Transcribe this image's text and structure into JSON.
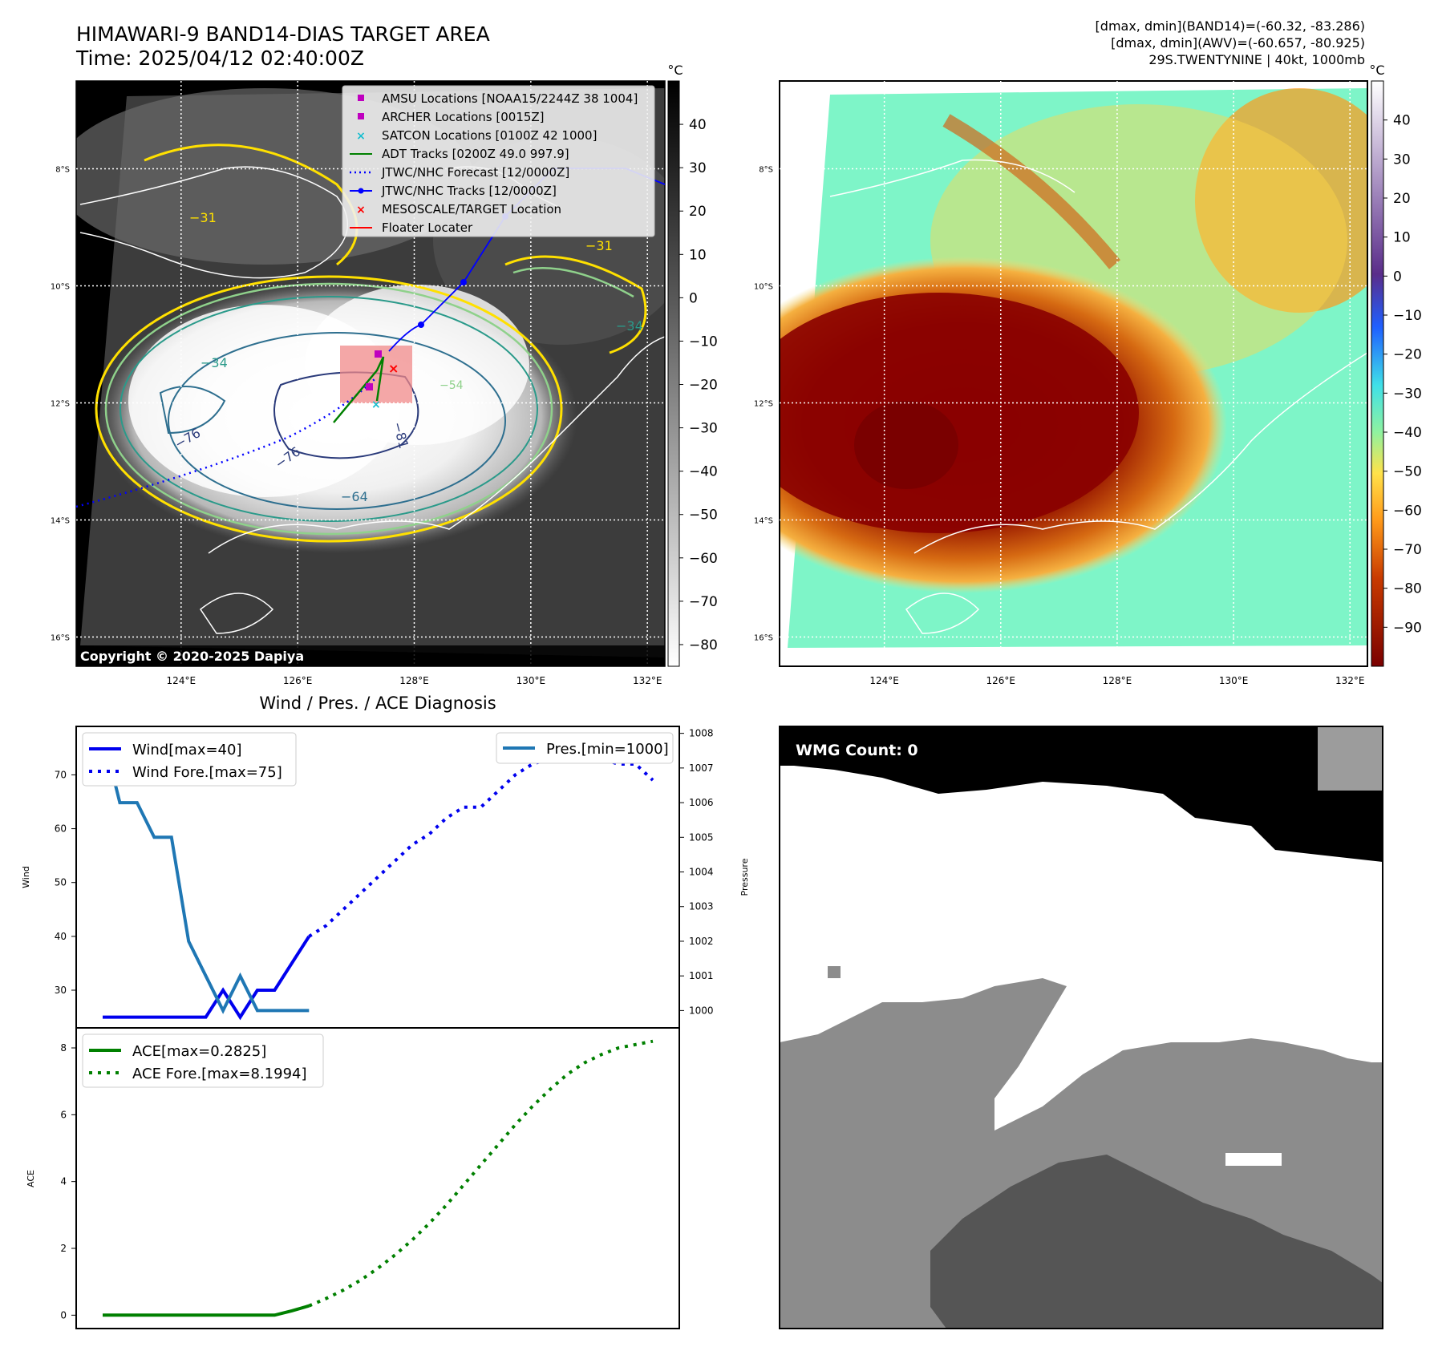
{
  "header": {
    "title": "HIMAWARI-9 BAND14-DIAS TARGET AREA",
    "time": "Time: 2025/04/12 02:40:00Z",
    "info_lines": [
      "[dmax, dmin](BAND14)=(-60.32, -83.286)",
      "[dmax, dmin](AWV)=(-60.657, -80.925)",
      "29S.TWENTYNINE | 40kt, 1000mb"
    ]
  },
  "map_axes": {
    "lat_ticks": [
      "8°S",
      "10°S",
      "12°S",
      "14°S",
      "16°S"
    ],
    "lon_ticks": [
      "124°E",
      "126°E",
      "128°E",
      "130°E",
      "132°E"
    ],
    "lat_values": [
      -8,
      -10,
      -12,
      -14,
      -16
    ],
    "lon_values": [
      124,
      126,
      128,
      130,
      132
    ],
    "lon_range": [
      122.2,
      132.3
    ],
    "lat_range": [
      -16.5,
      -6.5
    ]
  },
  "ir_panel": {
    "copyright": "Copyright © 2020-2025 Dapiya",
    "contour_labels": [
      "−31",
      "−31",
      "−34",
      "−34",
      "−76",
      "−76",
      "−64",
      "−81",
      "−54"
    ],
    "legend": [
      {
        "label": "AMSU Locations [NOAA15/2244Z 38 1004]",
        "marker": "square",
        "color": "#bf00bf"
      },
      {
        "label": "ARCHER Locations [0015Z]",
        "marker": "square",
        "color": "#bf00bf"
      },
      {
        "label": "SATCON Locations [0100Z 42 1000]",
        "marker": "x",
        "color": "#17becf"
      },
      {
        "label": "ADT Tracks [0200Z 49.0 997.9]",
        "marker": "line",
        "color": "#008000"
      },
      {
        "label": "JTWC/NHC Forecast [12/0000Z]",
        "marker": "dotted",
        "color": "#0000ff"
      },
      {
        "label": "JTWC/NHC Tracks [12/0000Z]",
        "marker": "line-dot",
        "color": "#0000ff"
      },
      {
        "label": "MESOSCALE/TARGET Location",
        "marker": "x",
        "color": "#ff0000"
      },
      {
        "label": "Floater Locater",
        "marker": "line",
        "color": "#ff0000"
      }
    ],
    "colorbar": {
      "unit": "°C",
      "ticks": [
        40,
        30,
        20,
        10,
        0,
        -10,
        -20,
        -30,
        -40,
        -50,
        -60,
        -70,
        -80
      ],
      "range": [
        -85,
        50
      ]
    }
  },
  "awv_panel": {
    "colorbar": {
      "unit": "°C",
      "ticks": [
        40,
        30,
        20,
        10,
        0,
        -10,
        -20,
        -30,
        -40,
        -50,
        -60,
        -70,
        -80,
        -90
      ],
      "range": [
        -100,
        50
      ]
    }
  },
  "chart_data": [
    {
      "type": "line",
      "title": "Wind / Pres. / ACE Diagnosis",
      "ylabel": "Wind",
      "ylabel2": "Pressure",
      "ylim": [
        23,
        79
      ],
      "ylim2": [
        999.5,
        1008.2
      ],
      "yticks": [
        30,
        40,
        50,
        60,
        70
      ],
      "yticks2": [
        1000,
        1001,
        1002,
        1003,
        1004,
        1005,
        1006,
        1007,
        1008
      ],
      "legend_left": [
        "Wind[max=40]",
        "Wind Fore.[max=75]"
      ],
      "legend_right": [
        "Pres.[min=1000]"
      ],
      "series": [
        {
          "name": "Wind[max=40]",
          "axis": "left",
          "style": "solid",
          "color": "#0000ee",
          "points": [
            [
              0,
              25
            ],
            [
              1,
              25
            ],
            [
              2,
              25
            ],
            [
              3,
              25
            ],
            [
              4,
              25
            ],
            [
              5,
              25
            ],
            [
              6,
              25
            ],
            [
              7,
              30
            ],
            [
              8,
              25
            ],
            [
              9,
              30
            ],
            [
              10,
              30
            ],
            [
              11,
              35
            ],
            [
              12,
              40
            ]
          ]
        },
        {
          "name": "Wind Fore.[max=75]",
          "axis": "left",
          "style": "dotted",
          "color": "#0000ee",
          "points": [
            [
              12,
              40
            ],
            [
              13,
              42
            ],
            [
              14,
              45
            ],
            [
              15,
              48
            ],
            [
              16,
              51
            ],
            [
              17,
              54
            ],
            [
              18,
              57
            ],
            [
              19,
              59
            ],
            [
              20,
              62
            ],
            [
              21,
              64
            ],
            [
              22,
              64
            ],
            [
              23,
              67
            ],
            [
              24,
              70
            ],
            [
              25,
              72
            ],
            [
              26,
              73
            ],
            [
              27,
              74
            ],
            [
              28,
              74
            ],
            [
              29,
              73
            ],
            [
              30,
              72
            ],
            [
              31,
              72
            ],
            [
              32,
              69
            ]
          ]
        },
        {
          "name": "Pres.[min=1000]",
          "axis": "right",
          "style": "solid",
          "color": "#1f77b4",
          "points": [
            [
              0,
              1008
            ],
            [
              1,
              1006
            ],
            [
              2,
              1006
            ],
            [
              3,
              1005
            ],
            [
              4,
              1005
            ],
            [
              5,
              1002
            ],
            [
              6,
              1001
            ],
            [
              7,
              1000
            ],
            [
              8,
              1001
            ],
            [
              9,
              1000
            ],
            [
              10,
              1000
            ],
            [
              11,
              1000
            ],
            [
              12,
              1000
            ]
          ]
        }
      ]
    },
    {
      "type": "line",
      "ylabel": "ACE",
      "ylim": [
        -0.4,
        8.6
      ],
      "yticks": [
        0,
        2,
        4,
        6,
        8
      ],
      "legend": [
        "ACE[max=0.2825]",
        "ACE Fore.[max=8.1994]"
      ],
      "series": [
        {
          "name": "ACE[max=0.2825]",
          "style": "solid",
          "color": "#008000",
          "points": [
            [
              0,
              0
            ],
            [
              1,
              0
            ],
            [
              2,
              0
            ],
            [
              3,
              0
            ],
            [
              4,
              0
            ],
            [
              5,
              0
            ],
            [
              6,
              0
            ],
            [
              7,
              0
            ],
            [
              8,
              0
            ],
            [
              9,
              0
            ],
            [
              10,
              0
            ],
            [
              11,
              0.13
            ],
            [
              12,
              0.28
            ]
          ]
        },
        {
          "name": "ACE Fore.[max=8.1994]",
          "style": "dotted",
          "color": "#008000",
          "points": [
            [
              12,
              0.28
            ],
            [
              13,
              0.5
            ],
            [
              14,
              0.75
            ],
            [
              15,
              1.05
            ],
            [
              16,
              1.4
            ],
            [
              17,
              1.8
            ],
            [
              18,
              2.25
            ],
            [
              19,
              2.75
            ],
            [
              20,
              3.3
            ],
            [
              21,
              3.9
            ],
            [
              22,
              4.5
            ],
            [
              23,
              5.1
            ],
            [
              24,
              5.7
            ],
            [
              25,
              6.25
            ],
            [
              26,
              6.75
            ],
            [
              27,
              7.2
            ],
            [
              28,
              7.55
            ],
            [
              29,
              7.8
            ],
            [
              30,
              8.0
            ],
            [
              31,
              8.1
            ],
            [
              32,
              8.2
            ]
          ]
        }
      ]
    }
  ],
  "wmg_panel": {
    "label": "WMG Count: 0"
  }
}
